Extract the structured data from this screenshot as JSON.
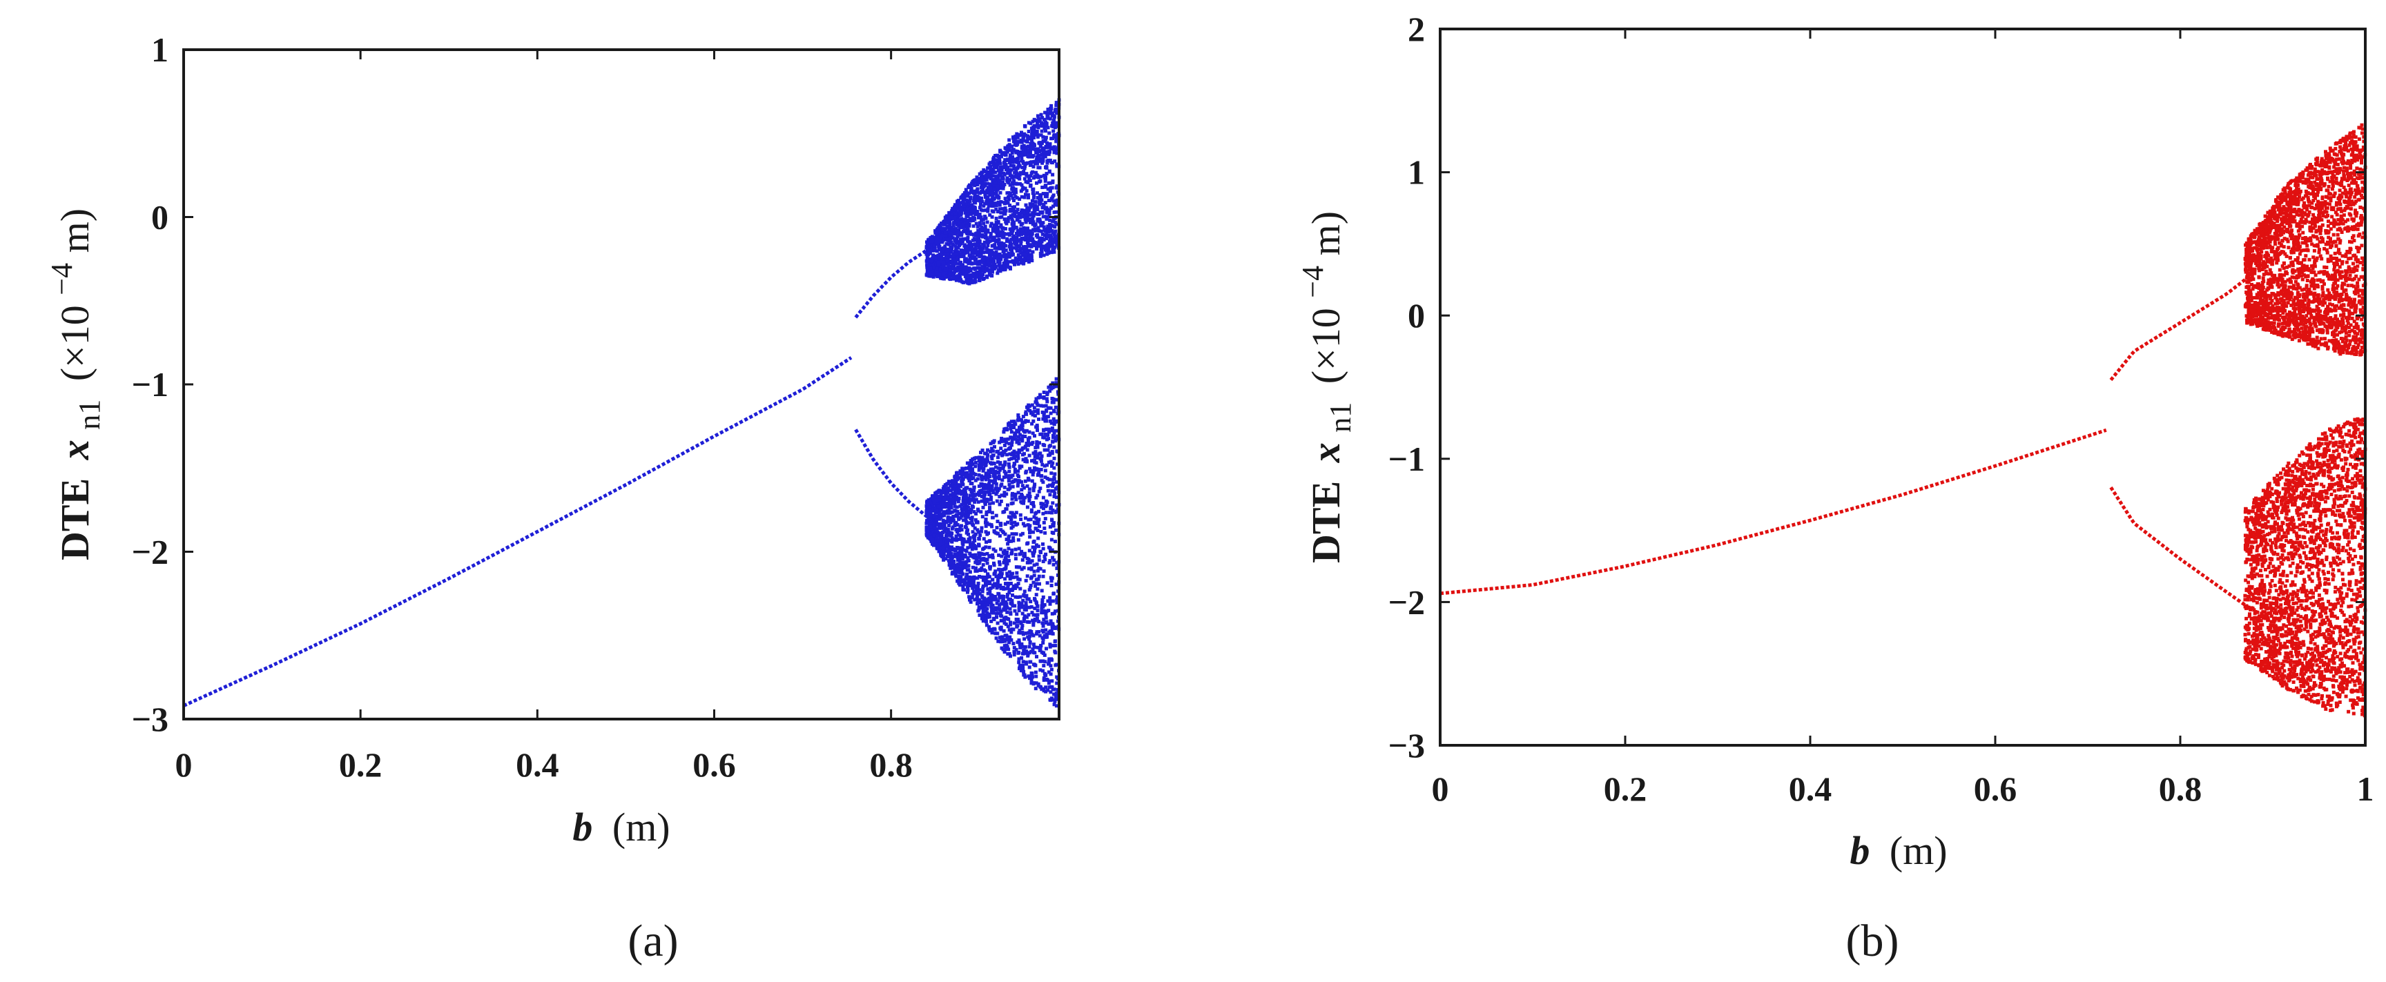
{
  "chart_data": [
    {
      "type": "scatter",
      "panel_label": "(a)",
      "title": "",
      "xlabel": {
        "var": "b",
        "unit": "(m)"
      },
      "ylabel": {
        "prefix": "DTE",
        "var": "x",
        "sub": "n1",
        "unit_pre": "(×10",
        "exp": "−4",
        "unit_post": "m)"
      },
      "xlim": [
        0,
        0.99
      ],
      "ylim": [
        -3,
        1
      ],
      "xticks": [
        0,
        0.2,
        0.4,
        0.6,
        0.8
      ],
      "xtick_labels": [
        "0",
        "0.2",
        "0.4",
        "0.6",
        "0.8"
      ],
      "yticks": [
        -3,
        -2,
        -1,
        0,
        1
      ],
      "ytick_labels": [
        "−3",
        "−2",
        "−1",
        "0",
        "1"
      ],
      "color": "#1f1fd6",
      "series": [
        {
          "name": "period-1 branch",
          "x": [
            0,
            0.1,
            0.2,
            0.3,
            0.4,
            0.5,
            0.6,
            0.7,
            0.755
          ],
          "y": [
            -2.92,
            -2.68,
            -2.43,
            -2.16,
            -1.88,
            -1.6,
            -1.31,
            -1.03,
            -0.84
          ]
        },
        {
          "name": "upper period-2 branch",
          "x": [
            0.76,
            0.78,
            0.8,
            0.82,
            0.84
          ],
          "y": [
            -0.6,
            -0.47,
            -0.36,
            -0.27,
            -0.2
          ]
        },
        {
          "name": "lower period-2 branch",
          "x": [
            0.76,
            0.78,
            0.8,
            0.82,
            0.845
          ],
          "y": [
            -1.27,
            -1.45,
            -1.59,
            -1.7,
            -1.81
          ]
        },
        {
          "name": "upper chaotic band",
          "x_range": [
            0.84,
            0.99
          ],
          "y_min": [
            -0.35,
            -0.4,
            -0.3,
            -0.2
          ],
          "y_max": [
            -0.15,
            0.2,
            0.5,
            0.7
          ]
        },
        {
          "name": "lower chaotic band",
          "x_range": [
            0.84,
            0.99
          ],
          "y_min": [
            -1.9,
            -2.3,
            -2.7,
            -2.95
          ],
          "y_max": [
            -1.7,
            -1.45,
            -1.2,
            -0.95
          ]
        }
      ]
    },
    {
      "type": "scatter",
      "panel_label": "(b)",
      "title": "",
      "xlabel": {
        "var": "b",
        "unit": "(m)"
      },
      "ylabel": {
        "prefix": "DTE",
        "var": "x",
        "sub": "n1",
        "unit_pre": "(×10",
        "exp": "−4",
        "unit_post": "m)"
      },
      "xlim": [
        0,
        1
      ],
      "ylim": [
        -3,
        2
      ],
      "xticks": [
        0,
        0.2,
        0.4,
        0.6,
        0.8,
        1
      ],
      "xtick_labels": [
        "0",
        "0.2",
        "0.4",
        "0.6",
        "0.8",
        "1"
      ],
      "yticks": [
        -3,
        -2,
        -1,
        0,
        1,
        2
      ],
      "ytick_labels": [
        "−3",
        "−2",
        "−1",
        "0",
        "1",
        "2"
      ],
      "color": "#e01010",
      "series": [
        {
          "name": "period-1 branch",
          "x": [
            0,
            0.1,
            0.2,
            0.3,
            0.4,
            0.5,
            0.6,
            0.72
          ],
          "y": [
            -1.94,
            -1.88,
            -1.75,
            -1.6,
            -1.43,
            -1.25,
            -1.05,
            -0.8
          ]
        },
        {
          "name": "upper period-2 branch",
          "x": [
            0.725,
            0.75,
            0.8,
            0.85,
            0.87
          ],
          "y": [
            -0.45,
            -0.25,
            -0.05,
            0.15,
            0.25
          ]
        },
        {
          "name": "lower period-2 branch",
          "x": [
            0.725,
            0.75,
            0.8,
            0.85,
            0.87
          ],
          "y": [
            -1.2,
            -1.45,
            -1.7,
            -1.93,
            -2.02
          ]
        },
        {
          "name": "upper chaotic band",
          "x_range": [
            0.87,
            1.0
          ],
          "y_min": [
            -0.05,
            -0.15,
            -0.25,
            -0.3
          ],
          "y_max": [
            0.5,
            0.9,
            1.15,
            1.35
          ]
        },
        {
          "name": "lower chaotic band",
          "x_range": [
            0.87,
            1.0
          ],
          "y_min": [
            -2.4,
            -2.6,
            -2.75,
            -2.8
          ],
          "y_max": [
            -1.35,
            -1.05,
            -0.8,
            -0.7
          ]
        }
      ]
    }
  ]
}
